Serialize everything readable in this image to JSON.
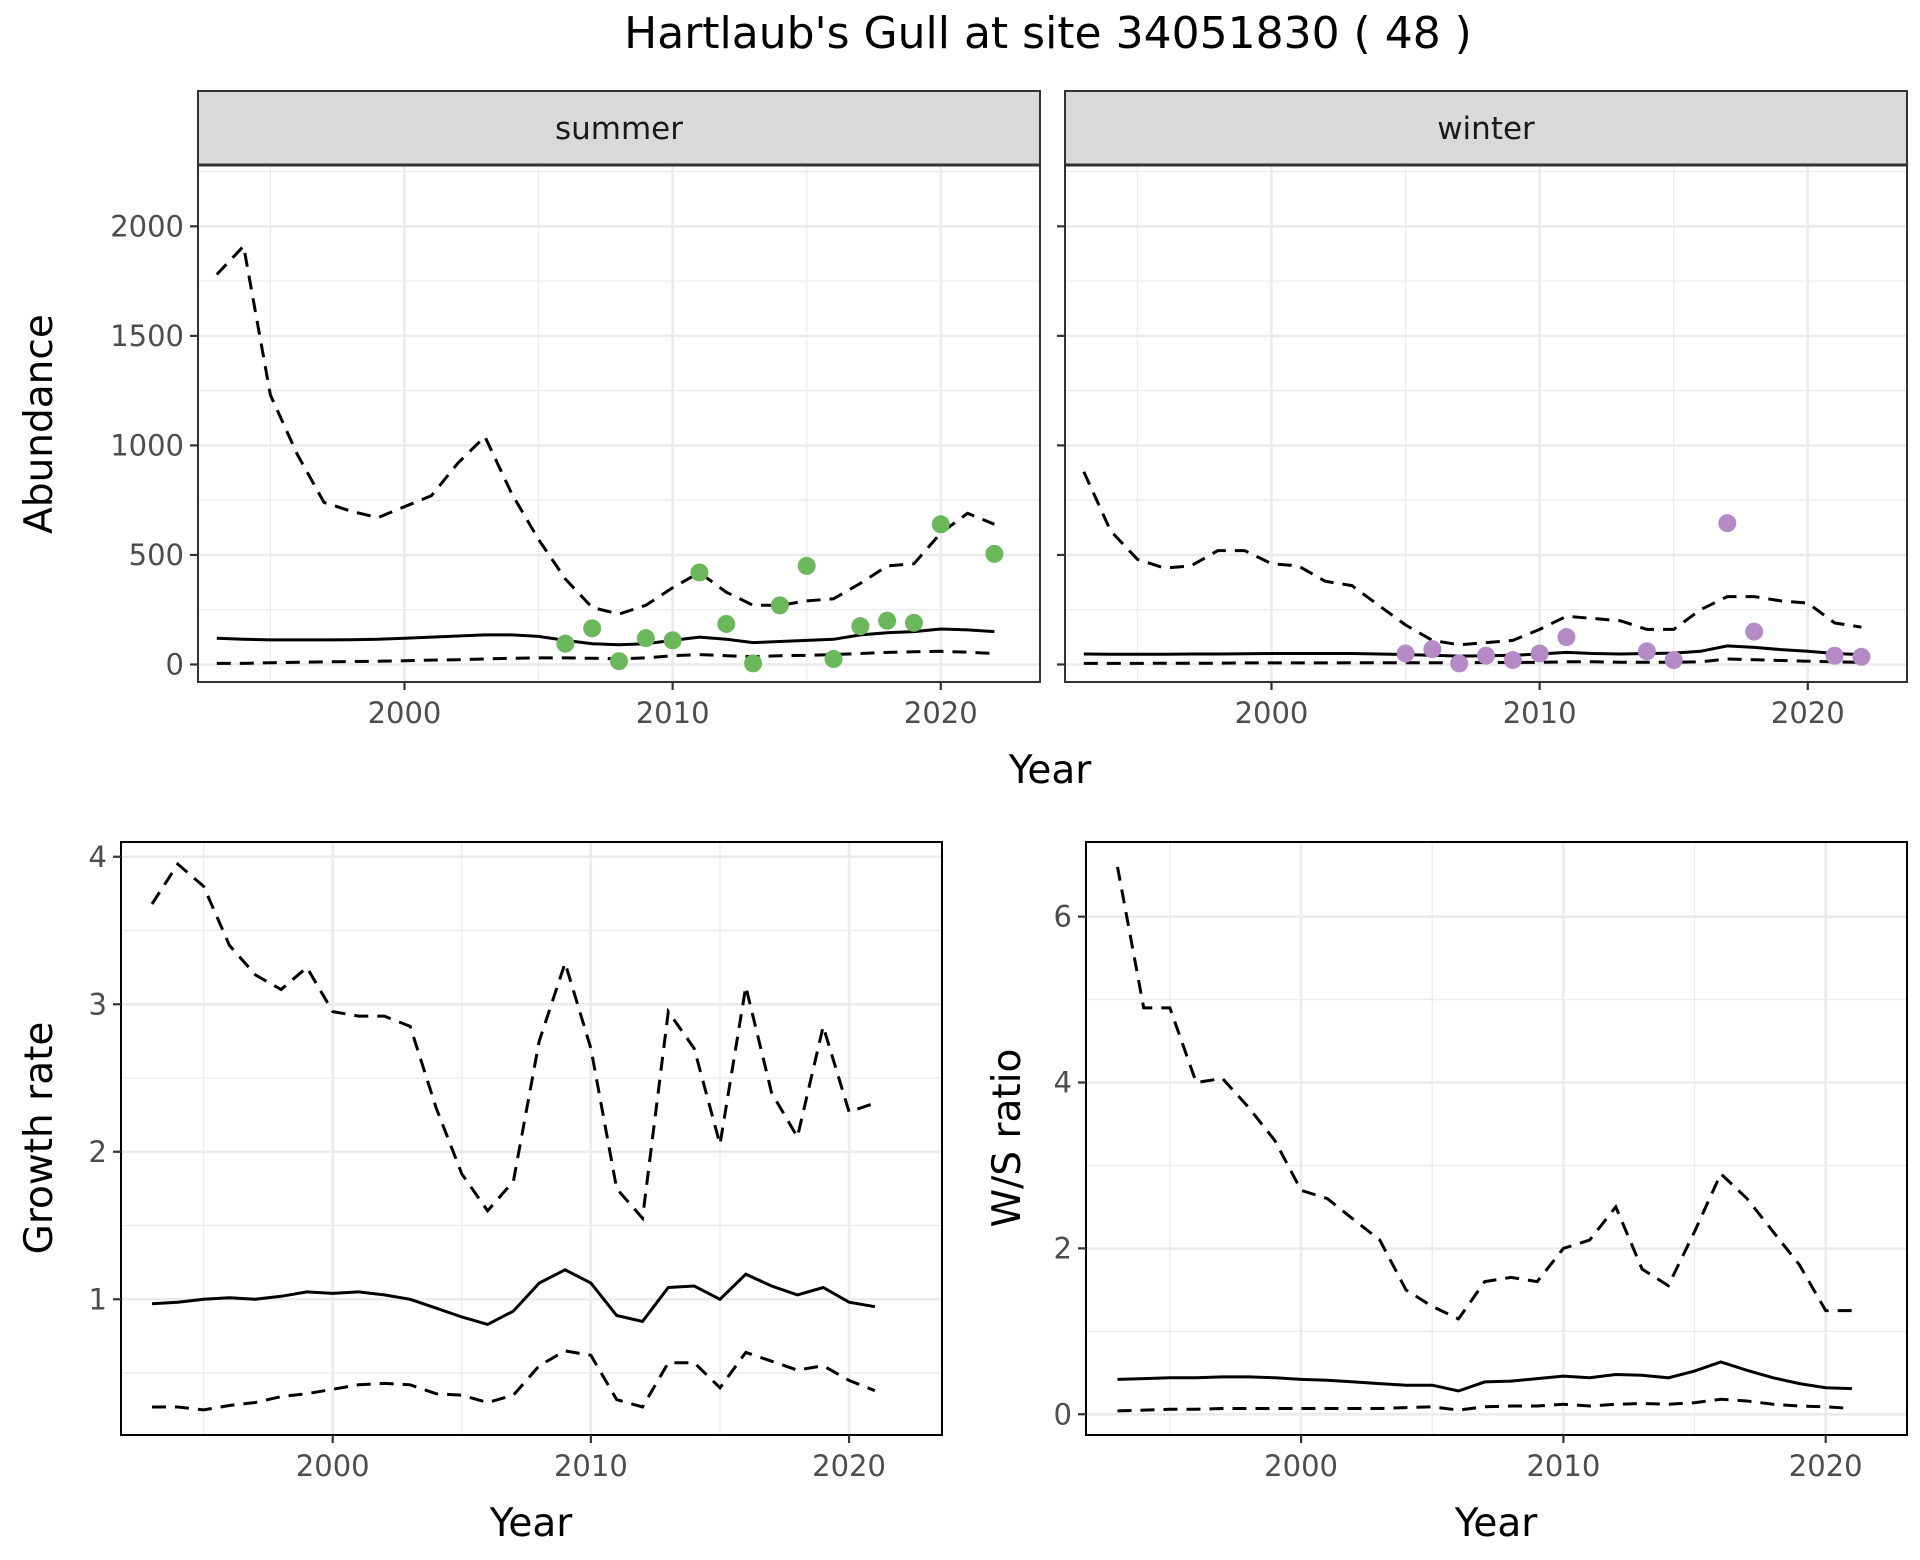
{
  "title": "Hartlaub's Gull at site 34051830 ( 48 )",
  "colors": {
    "summer_points": "#6bb75b",
    "winter_points": "#b48ac7",
    "lines": "#000000",
    "strip": "#d9d9d9"
  },
  "chart_data": [
    {
      "type": "line",
      "panel": "summer",
      "xlabel": "Year",
      "ylabel": "Abundance",
      "xlim": [
        1992.3,
        2023.7
      ],
      "ylim": [
        -80,
        2280
      ],
      "xticks": [
        2000,
        2010,
        2020
      ],
      "yticks": [
        0,
        500,
        1000,
        1500,
        2000
      ],
      "grid": true,
      "x": [
        1993,
        1994,
        1995,
        1996,
        1997,
        1998,
        1999,
        2000,
        2001,
        2002,
        2003,
        2004,
        2005,
        2006,
        2007,
        2008,
        2009,
        2010,
        2011,
        2012,
        2013,
        2014,
        2015,
        2016,
        2017,
        2018,
        2019,
        2020,
        2021,
        2022
      ],
      "series": [
        {
          "style": "dashed",
          "values": [
            1780,
            1910,
            1230,
            960,
            740,
            700,
            670,
            720,
            770,
            920,
            1040,
            780,
            570,
            390,
            260,
            230,
            270,
            350,
            420,
            330,
            270,
            270,
            290,
            300,
            370,
            450,
            460,
            600,
            690,
            640
          ]
        },
        {
          "style": "solid",
          "values": [
            120,
            115,
            112,
            112,
            112,
            113,
            115,
            120,
            125,
            130,
            135,
            135,
            128,
            110,
            95,
            90,
            95,
            110,
            125,
            115,
            100,
            105,
            110,
            115,
            135,
            145,
            150,
            162,
            158,
            150
          ]
        },
        {
          "style": "dashed",
          "values": [
            5,
            5,
            8,
            10,
            12,
            13,
            15,
            17,
            20,
            22,
            25,
            28,
            30,
            30,
            28,
            26,
            30,
            40,
            45,
            40,
            35,
            40,
            42,
            45,
            50,
            55,
            58,
            60,
            56,
            50
          ]
        }
      ],
      "points": {
        "x": [
          2006,
          2007,
          2008,
          2009,
          2010,
          2011,
          2012,
          2013,
          2014,
          2015,
          2016,
          2017,
          2018,
          2019,
          2020,
          2022
        ],
        "y": [
          95,
          165,
          15,
          120,
          110,
          420,
          185,
          5,
          270,
          450,
          25,
          175,
          200,
          190,
          640,
          505
        ]
      }
    },
    {
      "type": "line",
      "panel": "winter",
      "xlabel": "Year",
      "ylabel": "Abundance",
      "xlim": [
        1992.3,
        2023.7
      ],
      "ylim": [
        -80,
        2280
      ],
      "xticks": [
        2000,
        2010,
        2020
      ],
      "yticks": [
        0,
        500,
        1000,
        1500,
        2000
      ],
      "grid": true,
      "x": [
        1993,
        1994,
        1995,
        1996,
        1997,
        1998,
        1999,
        2000,
        2001,
        2002,
        2003,
        2004,
        2005,
        2006,
        2007,
        2008,
        2009,
        2010,
        2011,
        2012,
        2013,
        2014,
        2015,
        2016,
        2017,
        2018,
        2019,
        2020,
        2021,
        2022
      ],
      "series": [
        {
          "style": "dashed",
          "values": [
            880,
            610,
            480,
            440,
            450,
            520,
            520,
            460,
            450,
            380,
            360,
            270,
            180,
            110,
            90,
            100,
            110,
            160,
            220,
            210,
            200,
            160,
            160,
            250,
            310,
            310,
            290,
            280,
            190,
            170
          ]
        },
        {
          "style": "solid",
          "values": [
            48,
            47,
            47,
            47,
            48,
            48,
            49,
            50,
            50,
            50,
            50,
            48,
            45,
            42,
            38,
            40,
            42,
            48,
            55,
            50,
            48,
            50,
            52,
            60,
            85,
            78,
            68,
            60,
            50,
            45
          ]
        },
        {
          "style": "dashed",
          "values": [
            5,
            5,
            5,
            6,
            6,
            6,
            7,
            7,
            7,
            7,
            8,
            8,
            8,
            8,
            8,
            9,
            9,
            10,
            12,
            12,
            10,
            10,
            10,
            12,
            25,
            22,
            18,
            15,
            12,
            10
          ]
        }
      ],
      "points": {
        "x": [
          2005,
          2006,
          2007,
          2008,
          2009,
          2010,
          2011,
          2014,
          2015,
          2017,
          2018,
          2021,
          2022
        ],
        "y": [
          50,
          70,
          5,
          40,
          20,
          50,
          125,
          60,
          20,
          645,
          150,
          40,
          35
        ]
      }
    },
    {
      "type": "line",
      "panel": "growth",
      "xlabel": "Year",
      "ylabel": "Growth rate",
      "xlim": [
        1991.8,
        2023.6
      ],
      "ylim": [
        0.08,
        4.1
      ],
      "xticks": [
        2000,
        2010,
        2020
      ],
      "yticks": [
        1,
        2,
        3,
        4
      ],
      "grid": true,
      "x": [
        1993,
        1994,
        1995,
        1996,
        1997,
        1998,
        1999,
        2000,
        2001,
        2002,
        2003,
        2004,
        2005,
        2006,
        2007,
        2008,
        2009,
        2010,
        2011,
        2012,
        2013,
        2014,
        2015,
        2016,
        2017,
        2018,
        2019,
        2020,
        2021
      ],
      "series": [
        {
          "style": "dashed",
          "values": [
            3.68,
            3.95,
            3.8,
            3.4,
            3.2,
            3.1,
            3.25,
            2.95,
            2.92,
            2.92,
            2.85,
            2.3,
            1.85,
            1.6,
            1.8,
            2.75,
            3.28,
            2.7,
            1.75,
            1.55,
            2.95,
            2.7,
            2.05,
            3.12,
            2.4,
            2.1,
            2.85,
            2.27,
            2.33
          ]
        },
        {
          "style": "solid",
          "values": [
            0.97,
            0.98,
            1.0,
            1.01,
            1.0,
            1.02,
            1.05,
            1.04,
            1.05,
            1.03,
            1.0,
            0.94,
            0.88,
            0.83,
            0.92,
            1.11,
            1.2,
            1.11,
            0.89,
            0.85,
            1.08,
            1.09,
            1.0,
            1.17,
            1.09,
            1.03,
            1.08,
            0.98,
            0.95
          ]
        },
        {
          "style": "dashed",
          "values": [
            0.27,
            0.27,
            0.25,
            0.28,
            0.3,
            0.34,
            0.36,
            0.39,
            0.42,
            0.43,
            0.42,
            0.36,
            0.35,
            0.3,
            0.35,
            0.55,
            0.65,
            0.62,
            0.32,
            0.27,
            0.57,
            0.57,
            0.4,
            0.64,
            0.58,
            0.52,
            0.55,
            0.45,
            0.38
          ]
        }
      ]
    },
    {
      "type": "line",
      "panel": "ratio",
      "xlabel": "Year",
      "ylabel": "W/S ratio",
      "xlim": [
        1991.8,
        2023.1
      ],
      "ylim": [
        -0.25,
        6.9
      ],
      "xticks": [
        2000,
        2010,
        2020
      ],
      "yticks": [
        0,
        2,
        4,
        6
      ],
      "grid": true,
      "x": [
        1993,
        1994,
        1995,
        1996,
        1997,
        1998,
        1999,
        2000,
        2001,
        2002,
        2003,
        2004,
        2005,
        2006,
        2007,
        2008,
        2009,
        2010,
        2011,
        2012,
        2013,
        2014,
        2015,
        2016,
        2017,
        2018,
        2019,
        2020,
        2021
      ],
      "series": [
        {
          "style": "dashed",
          "values": [
            6.6,
            4.9,
            4.9,
            4.0,
            4.05,
            3.7,
            3.3,
            2.7,
            2.6,
            2.35,
            2.1,
            1.5,
            1.3,
            1.15,
            1.6,
            1.65,
            1.6,
            2.0,
            2.1,
            2.5,
            1.75,
            1.55,
            2.2,
            2.9,
            2.6,
            2.2,
            1.8,
            1.25,
            1.25
          ]
        },
        {
          "style": "solid",
          "values": [
            0.42,
            0.43,
            0.44,
            0.44,
            0.45,
            0.45,
            0.44,
            0.42,
            0.41,
            0.39,
            0.37,
            0.35,
            0.35,
            0.28,
            0.39,
            0.4,
            0.43,
            0.46,
            0.44,
            0.48,
            0.47,
            0.44,
            0.52,
            0.63,
            0.53,
            0.44,
            0.37,
            0.32,
            0.31
          ]
        },
        {
          "style": "dashed",
          "values": [
            0.04,
            0.05,
            0.06,
            0.06,
            0.07,
            0.07,
            0.07,
            0.07,
            0.07,
            0.07,
            0.07,
            0.08,
            0.09,
            0.05,
            0.09,
            0.1,
            0.1,
            0.12,
            0.1,
            0.12,
            0.13,
            0.12,
            0.14,
            0.18,
            0.16,
            0.12,
            0.1,
            0.09,
            0.07
          ]
        }
      ]
    }
  ]
}
